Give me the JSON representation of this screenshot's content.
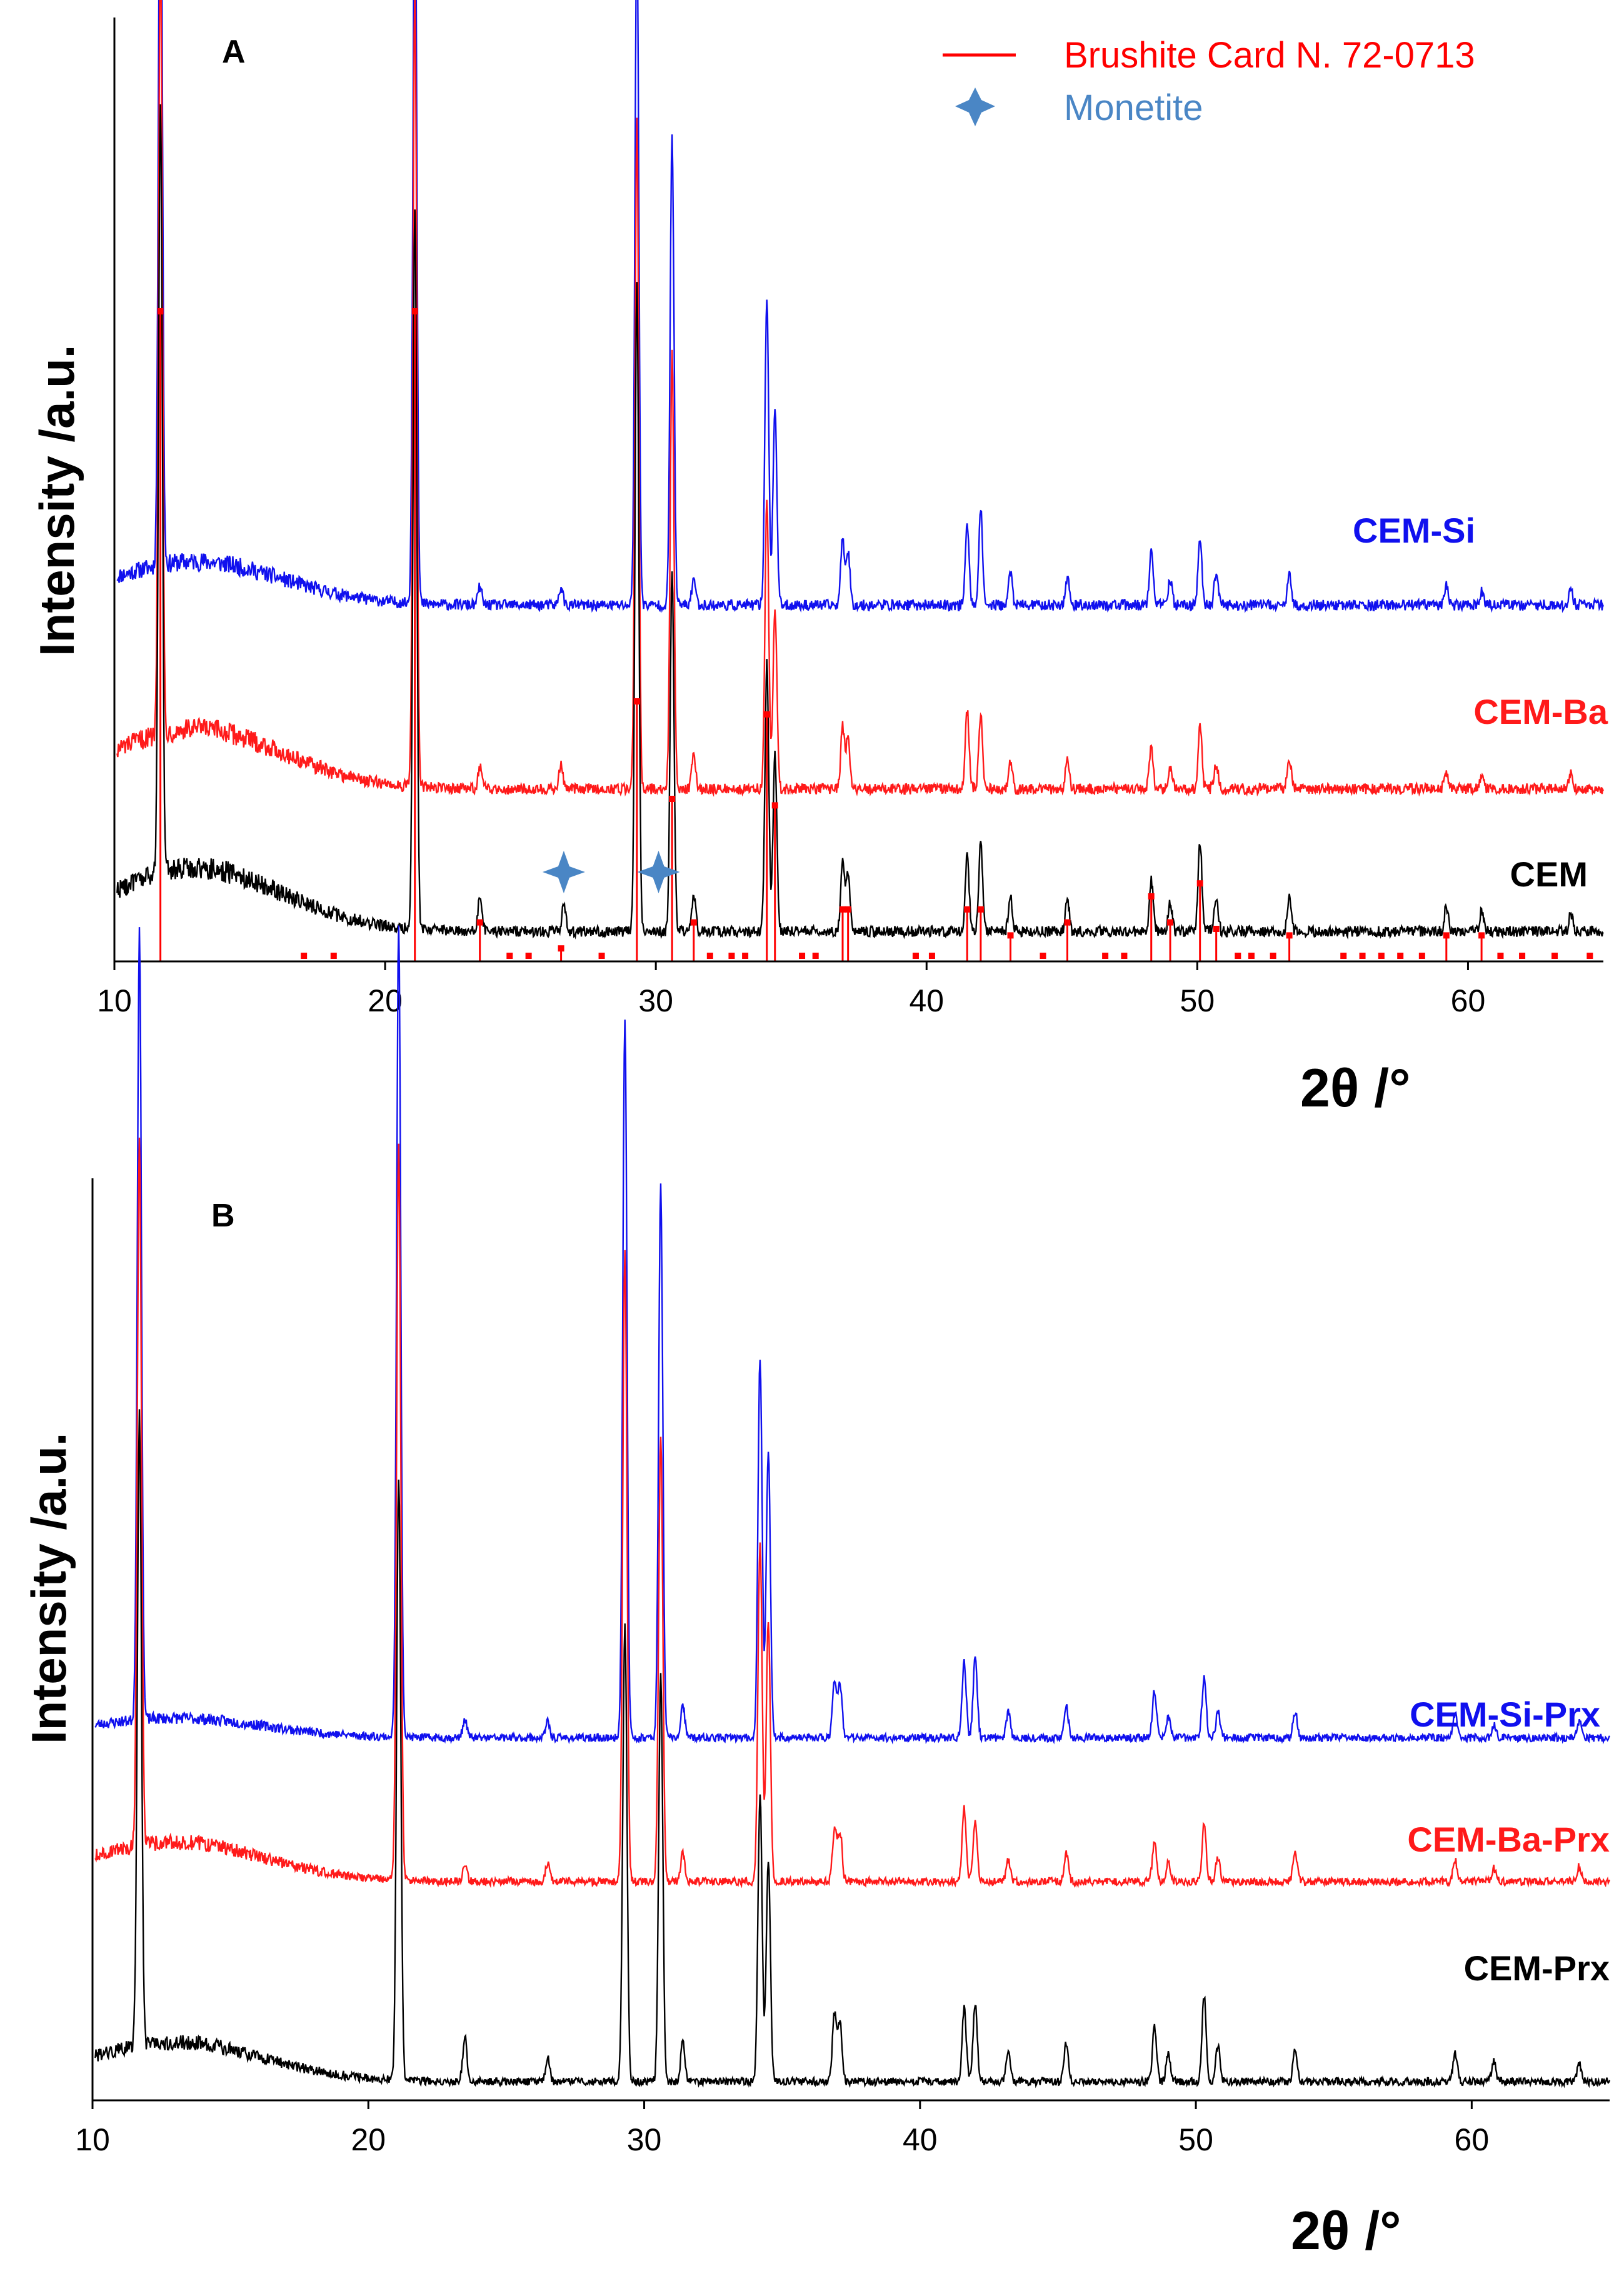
{
  "chart_data": [
    {
      "panel": "A",
      "type": "line",
      "xlabel": "2θ /°",
      "ylabel": "Intensity /a.u.",
      "xlim": [
        10,
        65
      ],
      "xticks": [
        10,
        20,
        30,
        40,
        50,
        60
      ],
      "legend": {
        "position": "top-right",
        "items": [
          {
            "label": "Brushite Card N. 72-0713",
            "marker": "line",
            "color": "#ff0000"
          },
          {
            "label": "Monetite",
            "marker": "star",
            "color": "#4a86c5"
          }
        ]
      },
      "series": [
        {
          "name": "CEM-Si",
          "color": "#1010ee",
          "offset": 2.0,
          "scale": 1.0,
          "halo_amp": 0.24,
          "peaks": [
            [
              11.7,
              4.5
            ],
            [
              21.1,
              4.3
            ],
            [
              23.5,
              0.1
            ],
            [
              26.5,
              0.1
            ],
            [
              29.3,
              3.8
            ],
            [
              30.6,
              2.6
            ],
            [
              31.4,
              0.15
            ],
            [
              34.1,
              1.7
            ],
            [
              34.4,
              1.1
            ],
            [
              36.9,
              0.36
            ],
            [
              37.1,
              0.3
            ],
            [
              41.5,
              0.44
            ],
            [
              42.0,
              0.52
            ],
            [
              43.1,
              0.18
            ],
            [
              45.2,
              0.16
            ],
            [
              48.3,
              0.3
            ],
            [
              49.0,
              0.14
            ],
            [
              50.1,
              0.38
            ],
            [
              50.7,
              0.18
            ],
            [
              53.4,
              0.16
            ],
            [
              59.2,
              0.12
            ],
            [
              60.5,
              0.08
            ],
            [
              63.8,
              0.08
            ]
          ]
        },
        {
          "name": "CEM-Ba",
          "color": "#ff1a1a",
          "offset": 1.0,
          "scale": 1.0,
          "halo_amp": 0.33,
          "peaks": [
            [
              11.7,
              4.4
            ],
            [
              21.1,
              4.4
            ],
            [
              23.5,
              0.12
            ],
            [
              26.5,
              0.14
            ],
            [
              29.3,
              3.7
            ],
            [
              30.6,
              2.4
            ],
            [
              31.4,
              0.2
            ],
            [
              34.1,
              1.6
            ],
            [
              34.4,
              1.0
            ],
            [
              36.9,
              0.34
            ],
            [
              37.1,
              0.28
            ],
            [
              41.5,
              0.44
            ],
            [
              42.0,
              0.4
            ],
            [
              43.1,
              0.14
            ],
            [
              45.2,
              0.15
            ],
            [
              48.3,
              0.22
            ],
            [
              49.0,
              0.12
            ],
            [
              50.1,
              0.36
            ],
            [
              50.7,
              0.14
            ],
            [
              53.4,
              0.16
            ],
            [
              59.2,
              0.1
            ],
            [
              60.5,
              0.08
            ],
            [
              63.8,
              0.1
            ]
          ]
        },
        {
          "name": "CEM",
          "color": "#000000",
          "offset": 0.0,
          "scale": 1.0,
          "halo_amp": 0.35,
          "peaks": [
            [
              11.7,
              4.3
            ],
            [
              21.1,
              4.0
            ],
            [
              23.5,
              0.2
            ],
            [
              26.6,
              0.16
            ],
            [
              29.3,
              3.6
            ],
            [
              30.6,
              2.0
            ],
            [
              31.4,
              0.2
            ],
            [
              34.1,
              1.5
            ],
            [
              34.4,
              1.0
            ],
            [
              36.9,
              0.4
            ],
            [
              37.1,
              0.32
            ],
            [
              41.5,
              0.44
            ],
            [
              42.0,
              0.48
            ],
            [
              43.1,
              0.2
            ],
            [
              45.2,
              0.18
            ],
            [
              48.3,
              0.28
            ],
            [
              49.0,
              0.16
            ],
            [
              50.1,
              0.5
            ],
            [
              50.7,
              0.2
            ],
            [
              53.4,
              0.2
            ],
            [
              59.2,
              0.14
            ],
            [
              60.5,
              0.12
            ],
            [
              63.8,
              0.1
            ]
          ]
        }
      ],
      "reference_sticks": {
        "name": "Brushite Card N. 72-0713",
        "color": "#ff0000",
        "positions": [
          11.7,
          21.1,
          23.5,
          26.5,
          29.3,
          30.6,
          31.4,
          34.1,
          34.4,
          36.9,
          37.1,
          41.5,
          42.0,
          43.1,
          45.2,
          48.3,
          49.0,
          50.1,
          50.7,
          53.4,
          59.2,
          60.5
        ],
        "intensities": [
          100,
          100,
          6,
          2,
          40,
          25,
          6,
          38,
          24,
          8,
          8,
          8,
          8,
          4,
          6,
          10,
          6,
          12,
          5,
          4,
          4,
          4
        ],
        "minor_positions": [
          17.0,
          18.1,
          24.6,
          25.3,
          28.0,
          32.0,
          32.8,
          33.3,
          35.4,
          35.9,
          39.6,
          40.2,
          44.3,
          46.6,
          47.3,
          51.5,
          52.0,
          52.8,
          55.4,
          56.1,
          56.8,
          57.5,
          58.3,
          61.2,
          62.0,
          63.2,
          64.5
        ]
      },
      "monetite_markers": [
        26.6,
        30.1
      ],
      "series_labels": [
        "CEM-Si",
        "CEM-Ba",
        "CEM"
      ]
    },
    {
      "panel": "B",
      "type": "line",
      "xlabel": "2θ /°",
      "ylabel": "Intensity /a.u.",
      "xlim": [
        10,
        65
      ],
      "xticks": [
        10,
        20,
        30,
        40,
        50,
        60
      ],
      "series": [
        {
          "name": "CEM-Si-Prx",
          "color": "#1010ee",
          "offset": 2.0,
          "scale": 1.0,
          "halo_amp": 0.15,
          "peaks": [
            [
              11.7,
              6.0
            ],
            [
              21.1,
              6.2
            ],
            [
              23.5,
              0.14
            ],
            [
              26.5,
              0.12
            ],
            [
              29.3,
              5.5
            ],
            [
              30.6,
              4.2
            ],
            [
              31.4,
              0.24
            ],
            [
              34.2,
              2.9
            ],
            [
              34.5,
              2.2
            ],
            [
              36.9,
              0.44
            ],
            [
              37.1,
              0.4
            ],
            [
              41.6,
              0.58
            ],
            [
              42.0,
              0.6
            ],
            [
              43.2,
              0.2
            ],
            [
              45.3,
              0.24
            ],
            [
              48.5,
              0.36
            ],
            [
              49.0,
              0.16
            ],
            [
              50.3,
              0.46
            ],
            [
              50.8,
              0.2
            ],
            [
              53.6,
              0.2
            ],
            [
              59.4,
              0.18
            ],
            [
              60.8,
              0.1
            ],
            [
              63.9,
              0.12
            ]
          ]
        },
        {
          "name": "CEM-Ba-Prx",
          "color": "#ff1a1a",
          "offset": 1.0,
          "scale": 1.0,
          "halo_amp": 0.3,
          "peaks": [
            [
              11.7,
              5.4
            ],
            [
              21.1,
              5.6
            ],
            [
              23.5,
              0.12
            ],
            [
              26.5,
              0.14
            ],
            [
              29.3,
              4.8
            ],
            [
              30.6,
              3.4
            ],
            [
              31.4,
              0.22
            ],
            [
              34.2,
              2.6
            ],
            [
              34.5,
              2.0
            ],
            [
              36.9,
              0.4
            ],
            [
              37.1,
              0.38
            ],
            [
              41.6,
              0.56
            ],
            [
              42.0,
              0.44
            ],
            [
              43.2,
              0.16
            ],
            [
              45.3,
              0.22
            ],
            [
              48.5,
              0.3
            ],
            [
              49.0,
              0.14
            ],
            [
              50.3,
              0.44
            ],
            [
              50.8,
              0.18
            ],
            [
              53.6,
              0.22
            ],
            [
              59.4,
              0.16
            ],
            [
              60.8,
              0.1
            ],
            [
              63.9,
              0.12
            ]
          ]
        },
        {
          "name": "CEM-Prx",
          "color": "#000000",
          "offset": 0.0,
          "scale": 1.0,
          "halo_amp": 0.3,
          "peaks": [
            [
              11.7,
              4.8
            ],
            [
              21.1,
              4.6
            ],
            [
              23.5,
              0.34
            ],
            [
              26.5,
              0.18
            ],
            [
              29.3,
              3.5
            ],
            [
              30.6,
              3.1
            ],
            [
              31.4,
              0.3
            ],
            [
              34.2,
              2.2
            ],
            [
              34.5,
              1.7
            ],
            [
              36.9,
              0.52
            ],
            [
              37.1,
              0.44
            ],
            [
              41.6,
              0.56
            ],
            [
              42.0,
              0.6
            ],
            [
              43.2,
              0.24
            ],
            [
              45.3,
              0.3
            ],
            [
              48.5,
              0.42
            ],
            [
              49.0,
              0.22
            ],
            [
              50.3,
              0.66
            ],
            [
              50.8,
              0.28
            ],
            [
              53.6,
              0.24
            ],
            [
              59.4,
              0.22
            ],
            [
              60.8,
              0.16
            ],
            [
              63.9,
              0.14
            ]
          ]
        }
      ],
      "series_labels": [
        "CEM-Si-Prx",
        "CEM-Ba-Prx",
        "CEM-Prx"
      ]
    }
  ]
}
